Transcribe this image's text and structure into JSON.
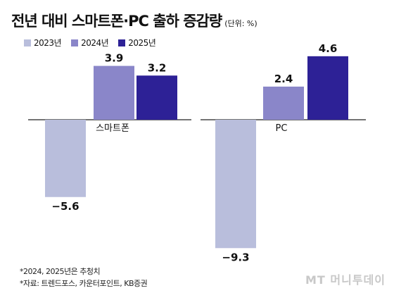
{
  "header": {
    "title": "전년 대비 스마트폰·PC 출하 증감량",
    "unit": "(단위: %)"
  },
  "footer": {
    "note1": "*2024, 2025년은 추청치",
    "note2": "*자료: 트렌드포스, 카운터포인트, KB증권"
  },
  "watermark": "MT 머니투데이",
  "colors": {
    "s2023": "#b9bedc",
    "s2024": "#8a86c9",
    "s2025": "#2d2196",
    "axis": "#222222"
  },
  "chart_data": {
    "type": "bar",
    "categories": [
      "스마트폰",
      "PC"
    ],
    "series": [
      {
        "name": "2023년",
        "values": [
          -5.6,
          -9.3
        ]
      },
      {
        "name": "2024년",
        "values": [
          3.9,
          2.4
        ]
      },
      {
        "name": "2025년",
        "values": [
          3.2,
          4.6
        ]
      }
    ],
    "value_labels": [
      [
        "−5.6",
        "−9.3"
      ],
      [
        "3.9",
        "2.4"
      ],
      [
        "3.2",
        "4.6"
      ]
    ],
    "ylim": [
      -9.3,
      4.6
    ],
    "grid": false,
    "legend": "top-left"
  }
}
